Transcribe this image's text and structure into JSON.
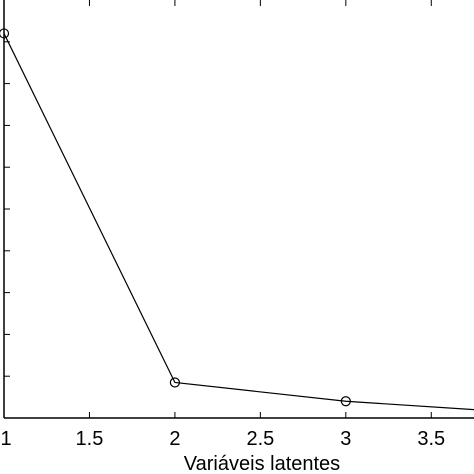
{
  "chart_data": {
    "type": "line",
    "xlabel": "Variáveis latentes",
    "ylabel": "",
    "title": "",
    "xlim": [
      1,
      3.75
    ],
    "ylim": [
      0,
      1
    ],
    "x_ticks": [
      1,
      1.5,
      2,
      2.5,
      3,
      3.5
    ],
    "x_tick_labels": [
      "1",
      "1.5",
      "2",
      "2.5",
      "3",
      "3.5"
    ],
    "y_ticks": [
      0.1,
      0.2,
      0.3,
      0.4,
      0.5,
      0.6,
      0.7,
      0.8,
      0.9
    ],
    "series": [
      {
        "x": [
          1,
          2,
          3,
          3.75
        ],
        "y": [
          0.92,
          0.085,
          0.04,
          0.02
        ],
        "markers": [
          true,
          true,
          true,
          false
        ],
        "marker": "circle",
        "color": "#000000"
      }
    ],
    "grid": false
  }
}
